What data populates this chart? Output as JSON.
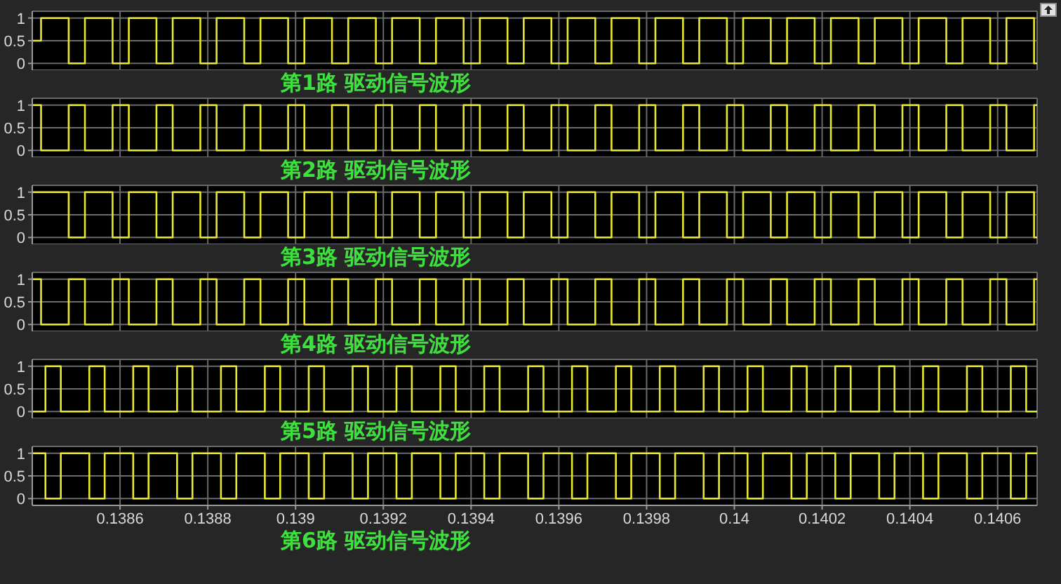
{
  "chart_data": [
    {
      "type": "step",
      "title": "第1路 驱动信号波形",
      "xlim": [
        0.1384,
        0.14069
      ],
      "xticks": [
        0.1386,
        0.1388,
        0.139,
        0.1392,
        0.1394,
        0.1396,
        0.1398,
        0.14,
        0.1402,
        0.1404,
        0.1406
      ],
      "ylim": [
        -0.15,
        1.15
      ],
      "yticks": [
        0,
        0.5,
        1
      ],
      "grid": true,
      "tick_labels": "y",
      "marker": "none",
      "series": [
        {
          "color": "#e8e830",
          "x": [
            0.1384,
            0.13842,
            0.138483,
            0.13852,
            0.138583,
            0.13862,
            0.138683,
            0.13872,
            0.138783,
            0.13882,
            0.138883,
            0.13892,
            0.138983,
            0.13902,
            0.139083,
            0.13912,
            0.139183,
            0.13922,
            0.139283,
            0.13932,
            0.139383,
            0.13942,
            0.139483,
            0.13952,
            0.139583,
            0.13962,
            0.139683,
            0.13972,
            0.139783,
            0.13982,
            0.139883,
            0.13992,
            0.139983,
            0.14002,
            0.140083,
            0.14012,
            0.140183,
            0.14022,
            0.140283,
            0.14032,
            0.140383,
            0.14042,
            0.140483,
            0.14052,
            0.140583,
            0.14062,
            0.140683,
            0.14069
          ],
          "values": [
            0.5,
            1,
            0,
            1,
            0,
            1,
            0,
            1,
            0,
            1,
            0,
            1,
            0,
            1,
            0,
            1,
            0,
            1,
            0,
            1,
            0,
            1,
            0,
            1,
            0,
            1,
            0,
            1,
            0,
            1,
            0,
            1,
            0,
            1,
            0,
            1,
            0,
            1,
            0,
            1,
            0,
            1,
            0,
            1,
            0,
            1,
            0,
            0
          ]
        }
      ]
    },
    {
      "type": "step",
      "title": "第2路 驱动信号波形",
      "xlim": [
        0.1384,
        0.14069
      ],
      "xticks": [
        0.1386,
        0.1388,
        0.139,
        0.1392,
        0.1394,
        0.1396,
        0.1398,
        0.14,
        0.1402,
        0.1404,
        0.1406
      ],
      "ylim": [
        -0.15,
        1.15
      ],
      "yticks": [
        0,
        0.5,
        1
      ],
      "grid": true,
      "tick_labels": "y",
      "marker": "none",
      "series": [
        {
          "color": "#e8e830",
          "x": [
            0.1384,
            0.13842,
            0.138483,
            0.13852,
            0.138583,
            0.13862,
            0.138683,
            0.13872,
            0.138783,
            0.13882,
            0.138883,
            0.13892,
            0.138983,
            0.13902,
            0.139083,
            0.13912,
            0.139183,
            0.13922,
            0.139283,
            0.13932,
            0.139383,
            0.13942,
            0.139483,
            0.13952,
            0.139583,
            0.13962,
            0.139683,
            0.13972,
            0.139783,
            0.13982,
            0.139883,
            0.13992,
            0.139983,
            0.14002,
            0.140083,
            0.14012,
            0.140183,
            0.14022,
            0.140283,
            0.14032,
            0.140383,
            0.14042,
            0.140483,
            0.14052,
            0.140583,
            0.14062,
            0.140683,
            0.14069
          ],
          "values": [
            1,
            0,
            1,
            0,
            1,
            0,
            1,
            0,
            1,
            0,
            1,
            0,
            1,
            0,
            1,
            0,
            1,
            0,
            1,
            0,
            1,
            0,
            1,
            0,
            1,
            0,
            1,
            0,
            1,
            0,
            1,
            0,
            1,
            0,
            1,
            0,
            1,
            0,
            1,
            0,
            1,
            0,
            1,
            0,
            1,
            0,
            1,
            1
          ]
        }
      ]
    },
    {
      "type": "step",
      "title": "第3路 驱动信号波形",
      "xlim": [
        0.1384,
        0.14069
      ],
      "xticks": [
        0.1386,
        0.1388,
        0.139,
        0.1392,
        0.1394,
        0.1396,
        0.1398,
        0.14,
        0.1402,
        0.1404,
        0.1406
      ],
      "ylim": [
        -0.15,
        1.15
      ],
      "yticks": [
        0,
        0.5,
        1
      ],
      "grid": true,
      "tick_labels": "y",
      "marker": "none",
      "series": [
        {
          "color": "#e8e830",
          "x": [
            0.1384,
            0.13842,
            0.138483,
            0.13852,
            0.138583,
            0.13862,
            0.138683,
            0.13872,
            0.138783,
            0.13882,
            0.138883,
            0.13892,
            0.138983,
            0.13902,
            0.139083,
            0.13912,
            0.139183,
            0.13922,
            0.139283,
            0.13932,
            0.139383,
            0.13942,
            0.139483,
            0.13952,
            0.139583,
            0.13962,
            0.139683,
            0.13972,
            0.139783,
            0.13982,
            0.139883,
            0.13992,
            0.139983,
            0.14002,
            0.140083,
            0.14012,
            0.140183,
            0.14022,
            0.140283,
            0.14032,
            0.140383,
            0.14042,
            0.140483,
            0.14052,
            0.140583,
            0.14062,
            0.140683,
            0.14069
          ],
          "values": [
            1,
            1,
            0,
            1,
            0,
            1,
            0,
            1,
            0,
            1,
            0,
            1,
            0,
            1,
            0,
            1,
            0,
            1,
            0,
            1,
            0,
            1,
            0,
            1,
            0,
            1,
            0,
            1,
            0,
            1,
            0,
            1,
            0,
            1,
            0,
            1,
            0,
            1,
            0,
            1,
            0,
            1,
            0,
            1,
            0,
            1,
            0,
            0
          ]
        }
      ]
    },
    {
      "type": "step",
      "title": "第4路 驱动信号波形",
      "xlim": [
        0.1384,
        0.14069
      ],
      "xticks": [
        0.1386,
        0.1388,
        0.139,
        0.1392,
        0.1394,
        0.1396,
        0.1398,
        0.14,
        0.1402,
        0.1404,
        0.1406
      ],
      "ylim": [
        -0.15,
        1.15
      ],
      "yticks": [
        0,
        0.5,
        1
      ],
      "grid": true,
      "tick_labels": "y",
      "marker": "none",
      "series": [
        {
          "color": "#e8e830",
          "x": [
            0.1384,
            0.13842,
            0.138483,
            0.13852,
            0.138583,
            0.13862,
            0.138683,
            0.13872,
            0.138783,
            0.13882,
            0.138883,
            0.13892,
            0.138983,
            0.13902,
            0.139083,
            0.13912,
            0.139183,
            0.13922,
            0.139283,
            0.13932,
            0.139383,
            0.13942,
            0.139483,
            0.13952,
            0.139583,
            0.13962,
            0.139683,
            0.13972,
            0.139783,
            0.13982,
            0.139883,
            0.13992,
            0.139983,
            0.14002,
            0.140083,
            0.14012,
            0.140183,
            0.14022,
            0.140283,
            0.14032,
            0.140383,
            0.14042,
            0.140483,
            0.14052,
            0.140583,
            0.14062,
            0.140683,
            0.14069
          ],
          "values": [
            1,
            0,
            1,
            0,
            1,
            0,
            1,
            0,
            1,
            0,
            1,
            0,
            1,
            0,
            1,
            0,
            1,
            0,
            1,
            0,
            1,
            0,
            1,
            0,
            1,
            0,
            1,
            0,
            1,
            0,
            1,
            0,
            1,
            0,
            1,
            0,
            1,
            0,
            1,
            0,
            1,
            0,
            1,
            0,
            1,
            0,
            1,
            1
          ]
        }
      ]
    },
    {
      "type": "step",
      "title": "第5路 驱动信号波形",
      "xlim": [
        0.1384,
        0.14069
      ],
      "xticks": [
        0.1386,
        0.1388,
        0.139,
        0.1392,
        0.1394,
        0.1396,
        0.1398,
        0.14,
        0.1402,
        0.1404,
        0.1406
      ],
      "ylim": [
        -0.15,
        1.15
      ],
      "yticks": [
        0,
        0.5,
        1
      ],
      "grid": true,
      "tick_labels": "y",
      "marker": "none",
      "series": [
        {
          "color": "#e8e830",
          "x": [
            0.1384,
            0.13843,
            0.138465,
            0.13853,
            0.138565,
            0.13863,
            0.138665,
            0.13873,
            0.138765,
            0.13883,
            0.138865,
            0.13893,
            0.138965,
            0.13903,
            0.139065,
            0.13913,
            0.139165,
            0.13923,
            0.139265,
            0.13933,
            0.139365,
            0.13943,
            0.139465,
            0.13953,
            0.139565,
            0.13963,
            0.139665,
            0.13973,
            0.139765,
            0.13983,
            0.139865,
            0.13993,
            0.139965,
            0.14003,
            0.140065,
            0.14013,
            0.140165,
            0.14023,
            0.140265,
            0.14033,
            0.140365,
            0.14043,
            0.140465,
            0.14053,
            0.140565,
            0.14063,
            0.140665,
            0.14069
          ],
          "values": [
            0,
            1,
            0,
            1,
            0,
            1,
            0,
            1,
            0,
            1,
            0,
            1,
            0,
            1,
            0,
            1,
            0,
            1,
            0,
            1,
            0,
            1,
            0,
            1,
            0,
            1,
            0,
            1,
            0,
            1,
            0,
            1,
            0,
            1,
            0,
            1,
            0,
            1,
            0,
            1,
            0,
            1,
            0,
            1,
            0,
            1,
            0,
            0
          ]
        }
      ]
    },
    {
      "type": "step",
      "title": "第6路 驱动信号波形",
      "xlim": [
        0.1384,
        0.14069
      ],
      "xticks": [
        0.1386,
        0.1388,
        0.139,
        0.1392,
        0.1394,
        0.1396,
        0.1398,
        0.14,
        0.1402,
        0.1404,
        0.1406
      ],
      "ylim": [
        -0.15,
        1.15
      ],
      "yticks": [
        0,
        0.5,
        1
      ],
      "grid": true,
      "marker": "none",
      "series": [
        {
          "color": "#e8e830",
          "x": [
            0.1384,
            0.13843,
            0.138465,
            0.13853,
            0.138565,
            0.13863,
            0.138665,
            0.13873,
            0.138765,
            0.13883,
            0.138865,
            0.13893,
            0.138965,
            0.13903,
            0.139065,
            0.13913,
            0.139165,
            0.13923,
            0.139265,
            0.13933,
            0.139365,
            0.13943,
            0.139465,
            0.13953,
            0.139565,
            0.13963,
            0.139665,
            0.13973,
            0.139765,
            0.13983,
            0.139865,
            0.13993,
            0.139965,
            0.14003,
            0.140065,
            0.14013,
            0.140165,
            0.14023,
            0.140265,
            0.14033,
            0.140365,
            0.14043,
            0.140465,
            0.14053,
            0.140565,
            0.14063,
            0.140665,
            0.14069
          ],
          "values": [
            1,
            0,
            1,
            0,
            1,
            0,
            1,
            0,
            1,
            0,
            1,
            0,
            1,
            0,
            1,
            0,
            1,
            0,
            1,
            0,
            1,
            0,
            1,
            0,
            1,
            0,
            1,
            0,
            1,
            0,
            1,
            0,
            1,
            0,
            1,
            0,
            1,
            0,
            1,
            0,
            1,
            0,
            1,
            0,
            1,
            0,
            1,
            1
          ]
        }
      ]
    }
  ]
}
